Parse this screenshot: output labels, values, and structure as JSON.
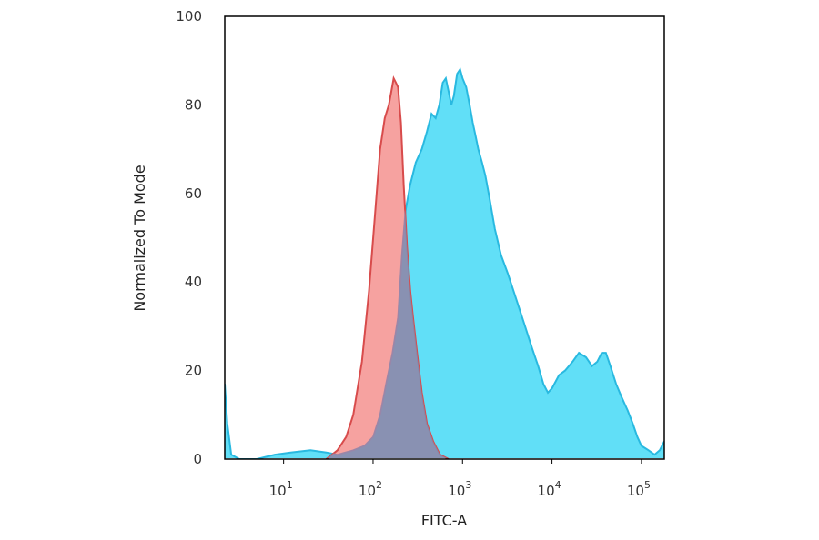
{
  "chart_data": {
    "type": "area",
    "xlabel": "FITC-A",
    "ylabel": "Normalized To Mode",
    "xscale": "log",
    "xlim": [
      2.2,
      180000
    ],
    "ylim": [
      0,
      100
    ],
    "grid": false,
    "legend": "none",
    "yticks": [
      0,
      20,
      40,
      60,
      80,
      100
    ],
    "xticks": [
      {
        "value": 10,
        "base": "10",
        "exp": "1"
      },
      {
        "value": 100,
        "base": "10",
        "exp": "2"
      },
      {
        "value": 1000,
        "base": "10",
        "exp": "3"
      },
      {
        "value": 10000,
        "base": "10",
        "exp": "4"
      },
      {
        "value": 100000,
        "base": "10",
        "exp": "5"
      }
    ],
    "series": [
      {
        "color": "#d84b4b",
        "fill": "#f4928f",
        "points": [
          [
            30,
            0
          ],
          [
            40,
            2
          ],
          [
            50,
            5
          ],
          [
            60,
            10
          ],
          [
            75,
            22
          ],
          [
            90,
            38
          ],
          [
            105,
            55
          ],
          [
            120,
            70
          ],
          [
            135,
            77
          ],
          [
            150,
            80
          ],
          [
            160,
            83
          ],
          [
            170,
            86
          ],
          [
            180,
            85
          ],
          [
            190,
            84
          ],
          [
            205,
            76
          ],
          [
            220,
            62
          ],
          [
            240,
            48
          ],
          [
            260,
            38
          ],
          [
            280,
            32
          ],
          [
            310,
            24
          ],
          [
            350,
            15
          ],
          [
            400,
            8
          ],
          [
            470,
            4
          ],
          [
            560,
            1
          ],
          [
            700,
            0
          ]
        ]
      },
      {
        "color": "#29b9e0",
        "fill": "#61dff7",
        "points": [
          [
            2.2,
            17
          ],
          [
            2.35,
            8
          ],
          [
            2.6,
            1
          ],
          [
            3.2,
            0
          ],
          [
            5,
            0
          ],
          [
            8,
            1
          ],
          [
            12,
            1.5
          ],
          [
            20,
            2
          ],
          [
            30,
            1.5
          ],
          [
            40,
            1
          ],
          [
            60,
            2
          ],
          [
            80,
            3
          ],
          [
            100,
            5
          ],
          [
            120,
            10
          ],
          [
            140,
            17
          ],
          [
            165,
            24
          ],
          [
            190,
            32
          ],
          [
            210,
            46
          ],
          [
            230,
            56
          ],
          [
            260,
            62
          ],
          [
            300,
            67
          ],
          [
            350,
            70
          ],
          [
            400,
            74
          ],
          [
            450,
            78
          ],
          [
            500,
            77
          ],
          [
            550,
            80
          ],
          [
            600,
            85
          ],
          [
            650,
            86
          ],
          [
            700,
            83
          ],
          [
            750,
            80
          ],
          [
            800,
            82
          ],
          [
            870,
            87
          ],
          [
            940,
            88
          ],
          [
            1000,
            86
          ],
          [
            1100,
            84
          ],
          [
            1200,
            80
          ],
          [
            1300,
            76
          ],
          [
            1400,
            73
          ],
          [
            1500,
            70
          ],
          [
            1650,
            67
          ],
          [
            1800,
            64
          ],
          [
            2000,
            59
          ],
          [
            2300,
            52
          ],
          [
            2700,
            46
          ],
          [
            3200,
            42
          ],
          [
            4000,
            36
          ],
          [
            5000,
            30
          ],
          [
            6000,
            25
          ],
          [
            7000,
            21
          ],
          [
            8000,
            17
          ],
          [
            9000,
            15
          ],
          [
            10000,
            16
          ],
          [
            12000,
            19
          ],
          [
            14000,
            20
          ],
          [
            17000,
            22
          ],
          [
            20000,
            24
          ],
          [
            24000,
            23
          ],
          [
            28000,
            21
          ],
          [
            32000,
            22
          ],
          [
            36000,
            24
          ],
          [
            40000,
            24
          ],
          [
            45000,
            21
          ],
          [
            52000,
            17
          ],
          [
            60000,
            14
          ],
          [
            70000,
            11
          ],
          [
            80000,
            8
          ],
          [
            90000,
            5
          ],
          [
            100000,
            3
          ],
          [
            120000,
            2
          ],
          [
            140000,
            1
          ],
          [
            160000,
            2
          ],
          [
            180000,
            4
          ]
        ]
      }
    ]
  }
}
